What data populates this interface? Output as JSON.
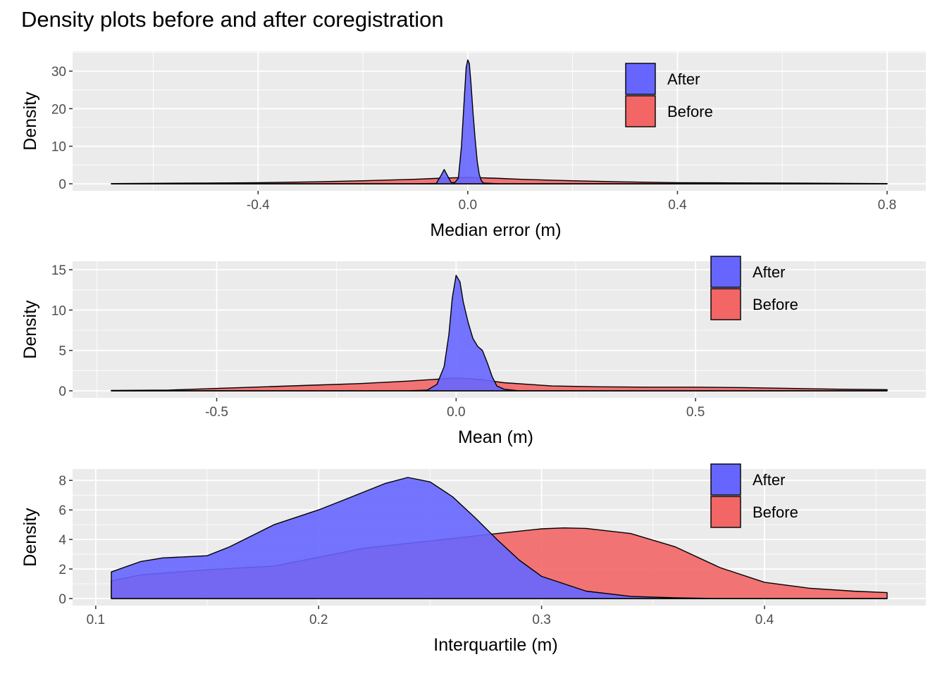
{
  "title": "Density plots before and after coregistration",
  "colors": {
    "after": "#6666FF",
    "before": "#F26666",
    "panel": "#EBEBEB",
    "grid": "#FFFFFF"
  },
  "chart_data": [
    {
      "type": "area",
      "xlabel": "Median error (m)",
      "ylabel": "Density",
      "xlim": [
        -0.68,
        0.8
      ],
      "ylim": [
        0,
        33
      ],
      "xticks": [
        -0.4,
        0.0,
        0.4,
        0.8
      ],
      "xtick_labels": [
        "-0.4",
        "0.0",
        "0.4",
        "0.8"
      ],
      "yticks": [
        0,
        10,
        20,
        30
      ],
      "ytick_labels": [
        "0",
        "10",
        "20",
        "30"
      ],
      "legend": {
        "position": "top-right",
        "entries": [
          "After",
          "Before"
        ]
      },
      "series": [
        {
          "name": "After",
          "color": "#6666FF",
          "x": [
            -0.68,
            -0.1,
            -0.06,
            -0.05,
            -0.045,
            -0.04,
            -0.032,
            -0.025,
            -0.018,
            -0.012,
            -0.007,
            -0.003,
            0.0,
            0.003,
            0.006,
            0.01,
            0.014,
            0.018,
            0.022,
            0.026,
            0.03,
            0.06,
            0.1,
            0.8
          ],
          "y": [
            0,
            0,
            0.1,
            2.5,
            3.8,
            2.5,
            0.4,
            0.3,
            1.5,
            10,
            22,
            31,
            33,
            32,
            27,
            19,
            12,
            6,
            2.5,
            0.8,
            0.2,
            0,
            0,
            0
          ]
        },
        {
          "name": "Before",
          "color": "#F26666",
          "x": [
            -0.68,
            -0.5,
            -0.4,
            -0.3,
            -0.2,
            -0.1,
            -0.05,
            0.0,
            0.05,
            0.1,
            0.2,
            0.3,
            0.4,
            0.5,
            0.6,
            0.8
          ],
          "y": [
            0.05,
            0.2,
            0.3,
            0.5,
            0.8,
            1.2,
            1.5,
            1.7,
            1.5,
            1.2,
            0.8,
            0.5,
            0.3,
            0.25,
            0.2,
            0.05
          ]
        }
      ]
    },
    {
      "type": "area",
      "xlabel": "Mean (m)",
      "ylabel": "Density",
      "xlim": [
        -0.72,
        0.9
      ],
      "ylim": [
        0,
        15
      ],
      "xticks": [
        -0.5,
        0.0,
        0.5
      ],
      "xtick_labels": [
        "-0.5",
        "0.0",
        "0.5"
      ],
      "yticks": [
        0,
        5,
        10,
        15
      ],
      "ytick_labels": [
        "0",
        "5",
        "10",
        "15"
      ],
      "legend": {
        "position": "top-right",
        "entries": [
          "After",
          "Before"
        ]
      },
      "series": [
        {
          "name": "After",
          "color": "#6666FF",
          "x": [
            -0.72,
            -0.1,
            -0.06,
            -0.04,
            -0.025,
            -0.015,
            -0.008,
            0.0,
            0.008,
            0.015,
            0.025,
            0.035,
            0.045,
            0.055,
            0.065,
            0.075,
            0.085,
            0.1,
            0.13,
            0.9
          ],
          "y": [
            0,
            0,
            0.1,
            0.8,
            3,
            7,
            11.5,
            14.3,
            13.5,
            11,
            8.5,
            6.5,
            5.5,
            5,
            3.5,
            1.8,
            0.6,
            0.2,
            0,
            0
          ]
        },
        {
          "name": "Before",
          "color": "#F26666",
          "x": [
            -0.72,
            -0.6,
            -0.5,
            -0.4,
            -0.3,
            -0.2,
            -0.1,
            -0.05,
            0.0,
            0.05,
            0.1,
            0.2,
            0.3,
            0.4,
            0.5,
            0.6,
            0.7,
            0.8,
            0.9
          ],
          "y": [
            0.05,
            0.1,
            0.3,
            0.5,
            0.7,
            0.9,
            1.2,
            1.4,
            1.6,
            1.4,
            1.0,
            0.6,
            0.5,
            0.45,
            0.45,
            0.4,
            0.3,
            0.2,
            0.15
          ]
        }
      ]
    },
    {
      "type": "area",
      "xlabel": "Interquartile (m)",
      "ylabel": "Density",
      "xlim": [
        0.107,
        0.455
      ],
      "ylim": [
        0,
        8.2
      ],
      "xticks": [
        0.1,
        0.2,
        0.3,
        0.4
      ],
      "xtick_labels": [
        "0.1",
        "0.2",
        "0.3",
        "0.4"
      ],
      "yticks": [
        0,
        2,
        4,
        6,
        8
      ],
      "ytick_labels": [
        "0",
        "2",
        "4",
        "6",
        "8"
      ],
      "legend": {
        "position": "top-right",
        "entries": [
          "After",
          "Before"
        ]
      },
      "series": [
        {
          "name": "After",
          "color": "#6666FF",
          "x": [
            0.107,
            0.12,
            0.13,
            0.15,
            0.16,
            0.18,
            0.2,
            0.21,
            0.22,
            0.23,
            0.24,
            0.25,
            0.26,
            0.27,
            0.28,
            0.29,
            0.3,
            0.32,
            0.34,
            0.36,
            0.38,
            0.4,
            0.42,
            0.455
          ],
          "y": [
            1.8,
            2.5,
            2.75,
            2.9,
            3.5,
            5.0,
            6.0,
            6.6,
            7.2,
            7.8,
            8.2,
            7.9,
            6.9,
            5.5,
            4.0,
            2.6,
            1.5,
            0.5,
            0.15,
            0.05,
            0,
            0,
            0,
            0
          ]
        },
        {
          "name": "Before",
          "color": "#F26666",
          "x": [
            0.107,
            0.12,
            0.15,
            0.18,
            0.2,
            0.22,
            0.25,
            0.28,
            0.3,
            0.31,
            0.32,
            0.34,
            0.36,
            0.38,
            0.4,
            0.42,
            0.44,
            0.455
          ],
          "y": [
            1.2,
            1.6,
            1.95,
            2.2,
            2.8,
            3.4,
            3.9,
            4.4,
            4.72,
            4.78,
            4.75,
            4.4,
            3.5,
            2.1,
            1.1,
            0.7,
            0.5,
            0.4
          ]
        }
      ]
    }
  ]
}
